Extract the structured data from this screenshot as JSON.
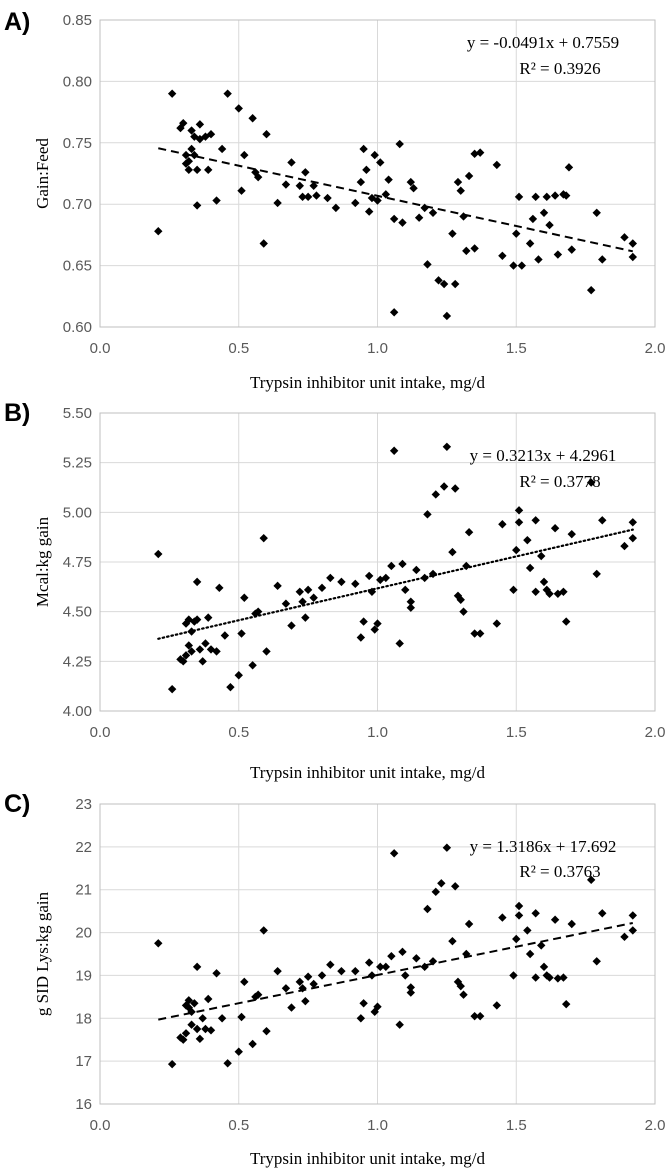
{
  "chart_data": [
    {
      "type": "scatter",
      "panel": "A)",
      "xlabel": "Trypsin inhibitor unit intake, mg/d",
      "ylabel": "Gain:Feed",
      "xlim": [
        0.0,
        2.0
      ],
      "ylim": [
        0.6,
        0.85
      ],
      "xticks": [
        "0.0",
        "0.5",
        "1.0",
        "1.5",
        "2.0"
      ],
      "yticks": [
        "0.60",
        "0.65",
        "0.70",
        "0.75",
        "0.80",
        "0.85"
      ],
      "grid": true,
      "trendline": {
        "style": "dashed",
        "slope": -0.0491,
        "intercept": 0.7559,
        "x_range": [
          0.21,
          1.92
        ]
      },
      "equation": "y = -0.0491x + 0.7559",
      "r_squared": "R² = 0.3926",
      "points": [
        [
          0.21,
          0.678
        ],
        [
          0.26,
          0.79
        ],
        [
          0.29,
          0.762
        ],
        [
          0.3,
          0.766
        ],
        [
          0.31,
          0.74
        ],
        [
          0.31,
          0.733
        ],
        [
          0.32,
          0.735
        ],
        [
          0.32,
          0.728
        ],
        [
          0.33,
          0.76
        ],
        [
          0.33,
          0.745
        ],
        [
          0.34,
          0.755
        ],
        [
          0.34,
          0.74
        ],
        [
          0.35,
          0.728
        ],
        [
          0.35,
          0.699
        ],
        [
          0.36,
          0.765
        ],
        [
          0.36,
          0.753
        ],
        [
          0.38,
          0.755
        ],
        [
          0.39,
          0.728
        ],
        [
          0.4,
          0.757
        ],
        [
          0.42,
          0.703
        ],
        [
          0.44,
          0.745
        ],
        [
          0.46,
          0.79
        ],
        [
          0.5,
          0.778
        ],
        [
          0.51,
          0.711
        ],
        [
          0.52,
          0.74
        ],
        [
          0.55,
          0.77
        ],
        [
          0.56,
          0.726
        ],
        [
          0.57,
          0.722
        ],
        [
          0.59,
          0.668
        ],
        [
          0.6,
          0.757
        ],
        [
          0.64,
          0.701
        ],
        [
          0.67,
          0.716
        ],
        [
          0.69,
          0.734
        ],
        [
          0.72,
          0.715
        ],
        [
          0.73,
          0.706
        ],
        [
          0.74,
          0.726
        ],
        [
          0.75,
          0.706
        ],
        [
          0.77,
          0.715
        ],
        [
          0.78,
          0.707
        ],
        [
          0.82,
          0.705
        ],
        [
          0.85,
          0.697
        ],
        [
          0.92,
          0.701
        ],
        [
          0.94,
          0.718
        ],
        [
          0.95,
          0.745
        ],
        [
          0.96,
          0.728
        ],
        [
          0.97,
          0.694
        ],
        [
          0.98,
          0.705
        ],
        [
          0.99,
          0.74
        ],
        [
          1.0,
          0.703
        ],
        [
          1.01,
          0.734
        ],
        [
          1.03,
          0.708
        ],
        [
          1.04,
          0.72
        ],
        [
          1.06,
          0.688
        ],
        [
          1.06,
          0.612
        ],
        [
          1.08,
          0.749
        ],
        [
          1.09,
          0.685
        ],
        [
          1.12,
          0.718
        ],
        [
          1.13,
          0.713
        ],
        [
          1.15,
          0.689
        ],
        [
          1.17,
          0.697
        ],
        [
          1.18,
          0.651
        ],
        [
          1.2,
          0.693
        ],
        [
          1.22,
          0.638
        ],
        [
          1.24,
          0.635
        ],
        [
          1.25,
          0.609
        ],
        [
          1.27,
          0.676
        ],
        [
          1.28,
          0.635
        ],
        [
          1.29,
          0.718
        ],
        [
          1.3,
          0.711
        ],
        [
          1.31,
          0.69
        ],
        [
          1.32,
          0.662
        ],
        [
          1.33,
          0.723
        ],
        [
          1.35,
          0.664
        ],
        [
          1.35,
          0.741
        ],
        [
          1.37,
          0.742
        ],
        [
          1.43,
          0.732
        ],
        [
          1.45,
          0.658
        ],
        [
          1.49,
          0.65
        ],
        [
          1.5,
          0.676
        ],
        [
          1.51,
          0.706
        ],
        [
          1.52,
          0.65
        ],
        [
          1.55,
          0.668
        ],
        [
          1.56,
          0.688
        ],
        [
          1.57,
          0.706
        ],
        [
          1.58,
          0.655
        ],
        [
          1.6,
          0.693
        ],
        [
          1.61,
          0.706
        ],
        [
          1.62,
          0.683
        ],
        [
          1.64,
          0.707
        ],
        [
          1.65,
          0.659
        ],
        [
          1.67,
          0.708
        ],
        [
          1.68,
          0.707
        ],
        [
          1.69,
          0.73
        ],
        [
          1.7,
          0.663
        ],
        [
          1.77,
          0.63
        ],
        [
          1.79,
          0.693
        ],
        [
          1.81,
          0.655
        ],
        [
          1.89,
          0.673
        ],
        [
          1.92,
          0.668
        ],
        [
          1.92,
          0.657
        ]
      ]
    },
    {
      "type": "scatter",
      "panel": "B)",
      "xlabel": "Trypsin inhibitor unit intake, mg/d",
      "ylabel": "Mcal:kg gain",
      "xlim": [
        0.0,
        2.0
      ],
      "ylim": [
        4.0,
        5.5
      ],
      "xticks": [
        "0.0",
        "0.5",
        "1.0",
        "1.5",
        "2.0"
      ],
      "yticks": [
        "4.00",
        "4.25",
        "4.50",
        "4.75",
        "5.00",
        "5.25",
        "5.50"
      ],
      "grid": true,
      "trendline": {
        "style": "dotted",
        "slope": 0.3213,
        "intercept": 4.2961,
        "x_range": [
          0.21,
          1.92
        ]
      },
      "equation": "y = 0.3213x + 4.2961",
      "r_squared": "R² = 0.3778",
      "points": [
        [
          0.21,
          4.79
        ],
        [
          0.26,
          4.11
        ],
        [
          0.29,
          4.26
        ],
        [
          0.3,
          4.25
        ],
        [
          0.31,
          4.44
        ],
        [
          0.31,
          4.28
        ],
        [
          0.32,
          4.33
        ],
        [
          0.32,
          4.46
        ],
        [
          0.33,
          4.4
        ],
        [
          0.33,
          4.3
        ],
        [
          0.34,
          4.45
        ],
        [
          0.35,
          4.65
        ],
        [
          0.35,
          4.46
        ],
        [
          0.36,
          4.31
        ],
        [
          0.37,
          4.25
        ],
        [
          0.38,
          4.34
        ],
        [
          0.39,
          4.47
        ],
        [
          0.4,
          4.31
        ],
        [
          0.42,
          4.3
        ],
        [
          0.43,
          4.62
        ],
        [
          0.45,
          4.38
        ],
        [
          0.47,
          4.12
        ],
        [
          0.5,
          4.18
        ],
        [
          0.51,
          4.39
        ],
        [
          0.52,
          4.57
        ],
        [
          0.55,
          4.23
        ],
        [
          0.56,
          4.49
        ],
        [
          0.57,
          4.5
        ],
        [
          0.59,
          4.87
        ],
        [
          0.6,
          4.3
        ],
        [
          0.64,
          4.63
        ],
        [
          0.67,
          4.54
        ],
        [
          0.69,
          4.43
        ],
        [
          0.72,
          4.6
        ],
        [
          0.73,
          4.55
        ],
        [
          0.74,
          4.47
        ],
        [
          0.75,
          4.61
        ],
        [
          0.77,
          4.57
        ],
        [
          0.8,
          4.62
        ],
        [
          0.83,
          4.67
        ],
        [
          0.87,
          4.65
        ],
        [
          0.92,
          4.64
        ],
        [
          0.94,
          4.37
        ],
        [
          0.95,
          4.45
        ],
        [
          0.97,
          4.68
        ],
        [
          0.98,
          4.6
        ],
        [
          0.99,
          4.41
        ],
        [
          1.0,
          4.44
        ],
        [
          1.01,
          4.66
        ],
        [
          1.03,
          4.67
        ],
        [
          1.05,
          4.73
        ],
        [
          1.06,
          5.31
        ],
        [
          1.08,
          4.34
        ],
        [
          1.09,
          4.74
        ],
        [
          1.1,
          4.61
        ],
        [
          1.12,
          4.55
        ],
        [
          1.12,
          4.52
        ],
        [
          1.14,
          4.71
        ],
        [
          1.17,
          4.67
        ],
        [
          1.18,
          4.99
        ],
        [
          1.2,
          4.69
        ],
        [
          1.21,
          5.09
        ],
        [
          1.24,
          5.13
        ],
        [
          1.25,
          5.33
        ],
        [
          1.27,
          4.8
        ],
        [
          1.28,
          5.12
        ],
        [
          1.29,
          4.58
        ],
        [
          1.3,
          4.56
        ],
        [
          1.31,
          4.5
        ],
        [
          1.32,
          4.73
        ],
        [
          1.33,
          4.9
        ],
        [
          1.35,
          4.39
        ],
        [
          1.37,
          4.39
        ],
        [
          1.43,
          4.44
        ],
        [
          1.45,
          4.94
        ],
        [
          1.49,
          4.61
        ],
        [
          1.51,
          5.01
        ],
        [
          1.51,
          4.95
        ],
        [
          1.5,
          4.81
        ],
        [
          1.54,
          4.86
        ],
        [
          1.55,
          4.72
        ],
        [
          1.57,
          4.96
        ],
        [
          1.57,
          4.6
        ],
        [
          1.59,
          4.78
        ],
        [
          1.6,
          4.65
        ],
        [
          1.61,
          4.61
        ],
        [
          1.62,
          4.59
        ],
        [
          1.64,
          4.92
        ],
        [
          1.65,
          4.59
        ],
        [
          1.67,
          4.6
        ],
        [
          1.68,
          4.45
        ],
        [
          1.7,
          4.89
        ],
        [
          1.77,
          5.15
        ],
        [
          1.79,
          4.69
        ],
        [
          1.81,
          4.96
        ],
        [
          1.89,
          4.83
        ],
        [
          1.92,
          4.95
        ],
        [
          1.92,
          4.87
        ]
      ]
    },
    {
      "type": "scatter",
      "panel": "C)",
      "xlabel": "Trypsin inhibitor unit intake, mg/d",
      "ylabel": "g SID Lys:kg gain",
      "xlim": [
        0.0,
        2.0
      ],
      "ylim": [
        16,
        23
      ],
      "xticks": [
        "0.0",
        "0.5",
        "1.0",
        "1.5",
        "2.0"
      ],
      "yticks": [
        "16",
        "17",
        "18",
        "19",
        "20",
        "21",
        "22",
        "23"
      ],
      "grid": true,
      "trendline": {
        "style": "dashed",
        "slope": 1.3186,
        "intercept": 17.692,
        "x_range": [
          0.21,
          1.92
        ]
      },
      "equation": "y = 1.3186x + 17.692",
      "r_squared": "R² = 0.3763",
      "points": [
        [
          0.21,
          19.75
        ],
        [
          0.26,
          16.93
        ],
        [
          0.29,
          17.55
        ],
        [
          0.3,
          17.5
        ],
        [
          0.31,
          18.3
        ],
        [
          0.31,
          17.65
        ],
        [
          0.32,
          18.42
        ],
        [
          0.32,
          18.25
        ],
        [
          0.33,
          17.85
        ],
        [
          0.33,
          18.15
        ],
        [
          0.34,
          18.35
        ],
        [
          0.35,
          19.2
        ],
        [
          0.35,
          17.75
        ],
        [
          0.36,
          17.52
        ],
        [
          0.37,
          18.0
        ],
        [
          0.38,
          17.75
        ],
        [
          0.39,
          18.45
        ],
        [
          0.4,
          17.72
        ],
        [
          0.42,
          19.05
        ],
        [
          0.44,
          18.0
        ],
        [
          0.46,
          16.95
        ],
        [
          0.5,
          17.22
        ],
        [
          0.51,
          18.03
        ],
        [
          0.52,
          18.85
        ],
        [
          0.55,
          17.4
        ],
        [
          0.56,
          18.5
        ],
        [
          0.57,
          18.55
        ],
        [
          0.59,
          20.05
        ],
        [
          0.6,
          17.7
        ],
        [
          0.64,
          19.1
        ],
        [
          0.67,
          18.7
        ],
        [
          0.69,
          18.25
        ],
        [
          0.72,
          18.85
        ],
        [
          0.73,
          18.7
        ],
        [
          0.74,
          18.4
        ],
        [
          0.75,
          18.97
        ],
        [
          0.77,
          18.8
        ],
        [
          0.8,
          19.0
        ],
        [
          0.83,
          19.25
        ],
        [
          0.87,
          19.1
        ],
        [
          0.92,
          19.1
        ],
        [
          0.94,
          18.0
        ],
        [
          0.95,
          18.35
        ],
        [
          0.97,
          19.3
        ],
        [
          0.98,
          19.0
        ],
        [
          0.99,
          18.15
        ],
        [
          1.0,
          18.27
        ],
        [
          1.01,
          19.2
        ],
        [
          1.03,
          19.2
        ],
        [
          1.05,
          19.45
        ],
        [
          1.06,
          21.85
        ],
        [
          1.08,
          17.85
        ],
        [
          1.09,
          19.55
        ],
        [
          1.1,
          19.0
        ],
        [
          1.12,
          18.72
        ],
        [
          1.12,
          18.6
        ],
        [
          1.14,
          19.4
        ],
        [
          1.17,
          19.2
        ],
        [
          1.18,
          20.55
        ],
        [
          1.2,
          19.33
        ],
        [
          1.21,
          20.95
        ],
        [
          1.23,
          21.15
        ],
        [
          1.25,
          21.98
        ],
        [
          1.27,
          19.8
        ],
        [
          1.28,
          21.08
        ],
        [
          1.29,
          18.85
        ],
        [
          1.3,
          18.75
        ],
        [
          1.31,
          18.55
        ],
        [
          1.32,
          19.5
        ],
        [
          1.33,
          20.2
        ],
        [
          1.35,
          18.05
        ],
        [
          1.37,
          18.05
        ],
        [
          1.43,
          18.3
        ],
        [
          1.45,
          20.35
        ],
        [
          1.49,
          19.0
        ],
        [
          1.51,
          20.62
        ],
        [
          1.51,
          20.4
        ],
        [
          1.5,
          19.85
        ],
        [
          1.54,
          20.05
        ],
        [
          1.55,
          19.5
        ],
        [
          1.57,
          20.45
        ],
        [
          1.57,
          18.95
        ],
        [
          1.59,
          19.7
        ],
        [
          1.6,
          19.2
        ],
        [
          1.61,
          19.0
        ],
        [
          1.62,
          18.95
        ],
        [
          1.64,
          20.3
        ],
        [
          1.65,
          18.93
        ],
        [
          1.67,
          18.95
        ],
        [
          1.68,
          18.33
        ],
        [
          1.7,
          20.2
        ],
        [
          1.77,
          21.23
        ],
        [
          1.79,
          19.33
        ],
        [
          1.81,
          20.45
        ],
        [
          1.89,
          19.9
        ],
        [
          1.92,
          20.4
        ],
        [
          1.92,
          20.05
        ]
      ]
    }
  ]
}
